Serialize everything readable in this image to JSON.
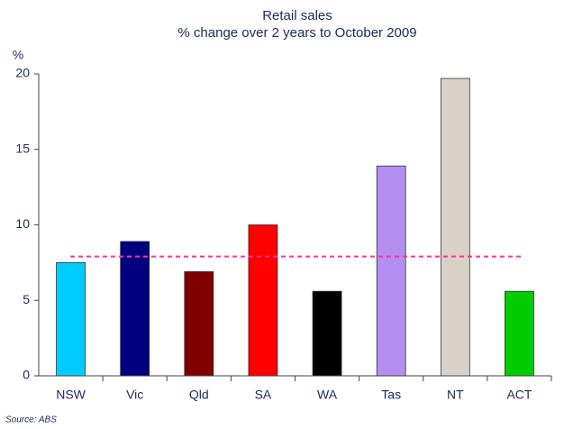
{
  "chart_data": {
    "type": "bar",
    "title": "Retail sales",
    "subtitle": "% change over 2 years to October 2009",
    "y_axis_label": "%",
    "source": "Source: ABS",
    "categories": [
      "NSW",
      "Vic",
      "Qld",
      "SA",
      "WA",
      "Tas",
      "NT",
      "ACT"
    ],
    "values": [
      7.5,
      8.9,
      6.9,
      10.0,
      5.6,
      13.9,
      19.7,
      5.6
    ],
    "colors": [
      "#00ccff",
      "#000080",
      "#800000",
      "#ff0000",
      "#000000",
      "#b38ef0",
      "#d9d0c8",
      "#00cc00"
    ],
    "reference_line": {
      "value": 7.9,
      "color": "#ff3399",
      "style": "dashed"
    },
    "ylim": [
      0,
      20
    ],
    "yticks": [
      0,
      5,
      10,
      15,
      20
    ],
    "grid": false
  }
}
